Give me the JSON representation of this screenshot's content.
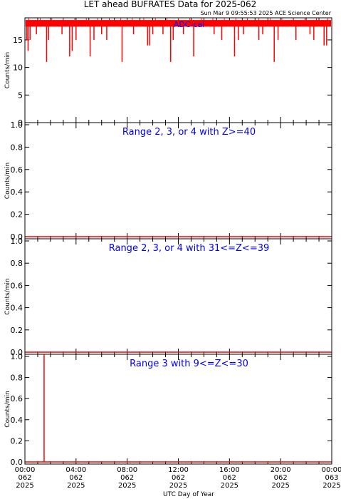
{
  "title": "LET ahead BUFRATES Data for 2025-062",
  "timestamp": "Sun Mar  9 09:55:53 2025 ACE Science Center",
  "xlabel": "UTC Day of Year",
  "colors": {
    "data": "#ff0000",
    "annotation": "#0000ff",
    "axis": "#000000"
  },
  "x_ticks": [
    {
      "time": "00:00",
      "day": "062",
      "year": "2025"
    },
    {
      "time": "04:00",
      "day": "062",
      "year": "2025"
    },
    {
      "time": "08:00",
      "day": "062",
      "year": "2025"
    },
    {
      "time": "12:00",
      "day": "062",
      "year": "2025"
    },
    {
      "time": "16:00",
      "day": "062",
      "year": "2025"
    },
    {
      "time": "20:00",
      "day": "062",
      "year": "2025"
    },
    {
      "time": "00:00",
      "day": "063",
      "year": "2025"
    }
  ],
  "chart_data": [
    {
      "type": "line",
      "label": "ADC-cal",
      "ylabel": "Counts/min",
      "ylim": [
        0,
        19
      ],
      "yticks": [
        "0",
        "5",
        "10",
        "15"
      ],
      "ytick_values": [
        0,
        5,
        10,
        15
      ],
      "x_range_hours": [
        0,
        24
      ],
      "baseline": 18,
      "dips": [
        {
          "x": 0.15,
          "y": 15
        },
        {
          "x": 0.25,
          "y": 13
        },
        {
          "x": 0.4,
          "y": 15
        },
        {
          "x": 0.9,
          "y": 16
        },
        {
          "x": 1.7,
          "y": 11
        },
        {
          "x": 1.85,
          "y": 15
        },
        {
          "x": 2.9,
          "y": 16
        },
        {
          "x": 3.5,
          "y": 12
        },
        {
          "x": 3.7,
          "y": 13
        },
        {
          "x": 4.0,
          "y": 15
        },
        {
          "x": 5.1,
          "y": 12
        },
        {
          "x": 5.4,
          "y": 15
        },
        {
          "x": 6.0,
          "y": 16
        },
        {
          "x": 6.4,
          "y": 15
        },
        {
          "x": 7.6,
          "y": 11
        },
        {
          "x": 8.5,
          "y": 16
        },
        {
          "x": 9.6,
          "y": 14
        },
        {
          "x": 9.75,
          "y": 14
        },
        {
          "x": 10.0,
          "y": 16
        },
        {
          "x": 10.8,
          "y": 16
        },
        {
          "x": 11.4,
          "y": 11
        },
        {
          "x": 11.6,
          "y": 15
        },
        {
          "x": 12.4,
          "y": 16
        },
        {
          "x": 13.2,
          "y": 12
        },
        {
          "x": 14.8,
          "y": 16
        },
        {
          "x": 15.4,
          "y": 15
        },
        {
          "x": 16.4,
          "y": 12
        },
        {
          "x": 16.7,
          "y": 15
        },
        {
          "x": 17.1,
          "y": 16
        },
        {
          "x": 18.3,
          "y": 15
        },
        {
          "x": 18.6,
          "y": 16
        },
        {
          "x": 19.5,
          "y": 11
        },
        {
          "x": 19.8,
          "y": 15
        },
        {
          "x": 21.2,
          "y": 15
        },
        {
          "x": 22.3,
          "y": 16
        },
        {
          "x": 22.6,
          "y": 15
        },
        {
          "x": 23.4,
          "y": 14
        },
        {
          "x": 23.6,
          "y": 14
        }
      ]
    },
    {
      "type": "line",
      "label": "Range 2, 3, or 4 with Z>=40",
      "ylabel": "Counts/min",
      "ylim": [
        0,
        1
      ],
      "yticks": [
        "0.0",
        "0.2",
        "0.4",
        "0.6",
        "0.8",
        "1.0"
      ],
      "ytick_values": [
        0,
        0.2,
        0.4,
        0.6,
        0.8,
        1.0
      ],
      "x_range_hours": [
        0,
        24
      ],
      "baseline": 0,
      "spikes": []
    },
    {
      "type": "line",
      "label": "Range 2, 3, or 4 with 31<=Z<=39",
      "ylabel": "Counts/min",
      "ylim": [
        0,
        1
      ],
      "yticks": [
        "0.0",
        "0.2",
        "0.4",
        "0.6",
        "0.8",
        "1.0"
      ],
      "ytick_values": [
        0,
        0.2,
        0.4,
        0.6,
        0.8,
        1.0
      ],
      "x_range_hours": [
        0,
        24
      ],
      "baseline": 0,
      "spikes": []
    },
    {
      "type": "line",
      "label": "Range 3 with 9<=Z<=30",
      "ylabel": "Counts/min",
      "ylim": [
        0,
        1
      ],
      "yticks": [
        "0.0",
        "0.2",
        "0.4",
        "0.6",
        "0.8",
        "1.0"
      ],
      "ytick_values": [
        0,
        0.2,
        0.4,
        0.6,
        0.8,
        1.0
      ],
      "x_range_hours": [
        0,
        24
      ],
      "baseline": 0,
      "spikes": [
        {
          "x": 1.5,
          "y": 1
        }
      ]
    }
  ]
}
